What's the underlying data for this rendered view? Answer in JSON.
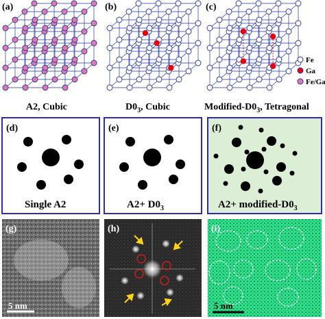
{
  "row1": {
    "panels": [
      {
        "label": "(a)",
        "caption": "A2, Cubic",
        "fill": "#e07aa8"
      },
      {
        "label": "(b)",
        "caption": "D0",
        "caption_sub": "3",
        "caption_tail": ", Cubic",
        "fill": "#ffffff"
      },
      {
        "label": "(c)",
        "caption": "Modified-D0",
        "caption_sub": "3",
        "caption_tail": ", Tetragonal",
        "fill": "#ffffff"
      }
    ],
    "legend": [
      {
        "label": "Fe",
        "color": "#ffffff"
      },
      {
        "label": "Ga",
        "color": "#e8000b"
      },
      {
        "label": "Fe/Ga",
        "color": "#e07aa8"
      }
    ]
  },
  "row2": {
    "panels": [
      {
        "label": "(d)",
        "caption": "Single A2",
        "caption_sub": "",
        "border": "#2b2bb8",
        "bg": "#ffffff"
      },
      {
        "label": "(e)",
        "caption": "A2+ D0",
        "caption_sub": "3",
        "border": "#2b2bb8",
        "bg": "#ffffff"
      },
      {
        "label": "(f)",
        "caption": "A2+ modified-D0",
        "caption_sub": "3",
        "border": "#2b2bb8",
        "bg": "#dcefd6"
      }
    ]
  },
  "row3": {
    "panels": [
      {
        "label": "(g)",
        "scale": "5 nm"
      },
      {
        "label": "(h)",
        "scale": ""
      },
      {
        "label": "(i)",
        "scale": "5 nm"
      }
    ]
  },
  "colors": {
    "lattice_line": "#2233aa",
    "atom_stroke": "#2233aa",
    "ga_red": "#e8000b",
    "fe_ga_pink": "#e07aa8",
    "arrow_yellow": "#ffd21a",
    "ring_red": "#c81e1e",
    "hrtem_green": "#2ce08a"
  }
}
